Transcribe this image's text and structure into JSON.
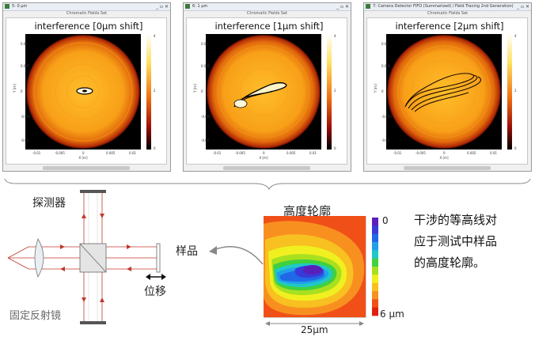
{
  "windows": [
    {
      "window_title": "5: 0 µm",
      "subtitle": "Chromatic Fields Set",
      "plot_title": "interference [0µm shift]"
    },
    {
      "window_title": "6: 1 µm",
      "subtitle": "Chromatic Fields Set",
      "plot_title": "interference [1µm shift]"
    },
    {
      "window_title": "7: Camera Detector FIFO (Summarized) / Field Tracing 2nd Generation)",
      "subtitle": "Chromatic Fields Set",
      "plot_title": "interference [2µm shift]"
    }
  ],
  "plot_axes": {
    "x_label": "X [m]",
    "y_label": "Y [m]",
    "x_ticks": [
      "-0.01",
      "-0.005",
      "0",
      "0.005",
      "0.01"
    ],
    "y_ticks": [
      "0.01",
      "0.005",
      "0",
      "-0.005",
      "-0.01"
    ],
    "colorbar_ticks": [
      "4",
      "2",
      "0"
    ]
  },
  "setup": {
    "detector": "探测器",
    "sample": "样品",
    "displacement": "位移",
    "fixed_mirror": "固定反射镜"
  },
  "height_map": {
    "title": "高度轮廓",
    "scale_top": "0",
    "scale_bottom": "6 µm",
    "width_label": "25µm",
    "scale_colors": [
      "#5a1fb8",
      "#3a3ad8",
      "#2068e8",
      "#20a0e8",
      "#20c8c8",
      "#40d040",
      "#a8e020",
      "#f0f020",
      "#f8c020",
      "#f89020",
      "#f05018",
      "#e02010"
    ]
  },
  "caption": [
    "干涉的等高线对",
    "应于测试中样品",
    "的高度轮廓。"
  ]
}
